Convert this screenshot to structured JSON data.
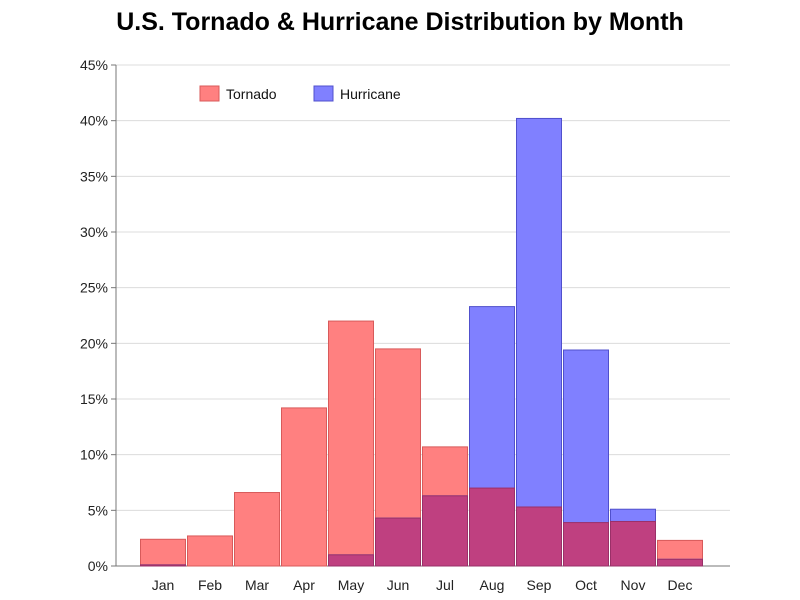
{
  "chart_data": {
    "type": "bar",
    "title": "U.S. Tornado & Hurricane Distribution by Month",
    "xlabel": "",
    "ylabel": "",
    "ylim": [
      0,
      45
    ],
    "y_ticks": [
      "0%",
      "5%",
      "10%",
      "15%",
      "20%",
      "25%",
      "30%",
      "35%",
      "40%",
      "45%"
    ],
    "grid": "horizontal",
    "legend_position": "top-left",
    "categories": [
      "Jan",
      "Feb",
      "Mar",
      "Apr",
      "May",
      "Jun",
      "Jul",
      "Aug",
      "Sep",
      "Oct",
      "Nov",
      "Dec"
    ],
    "series": [
      {
        "name": "Tornado",
        "color": "#ff8080",
        "border": "#d85a5a",
        "values": [
          2.4,
          2.7,
          6.6,
          14.2,
          22.0,
          19.5,
          10.7,
          7.0,
          5.3,
          3.9,
          4.0,
          2.3
        ]
      },
      {
        "name": "Hurricane",
        "color": "#8080ff",
        "border": "#5050cc",
        "values": [
          0.1,
          0.0,
          0.0,
          0.0,
          1.0,
          4.3,
          6.3,
          23.3,
          40.2,
          19.4,
          5.1,
          0.6
        ]
      }
    ],
    "overlap_color": "#bf4080"
  }
}
